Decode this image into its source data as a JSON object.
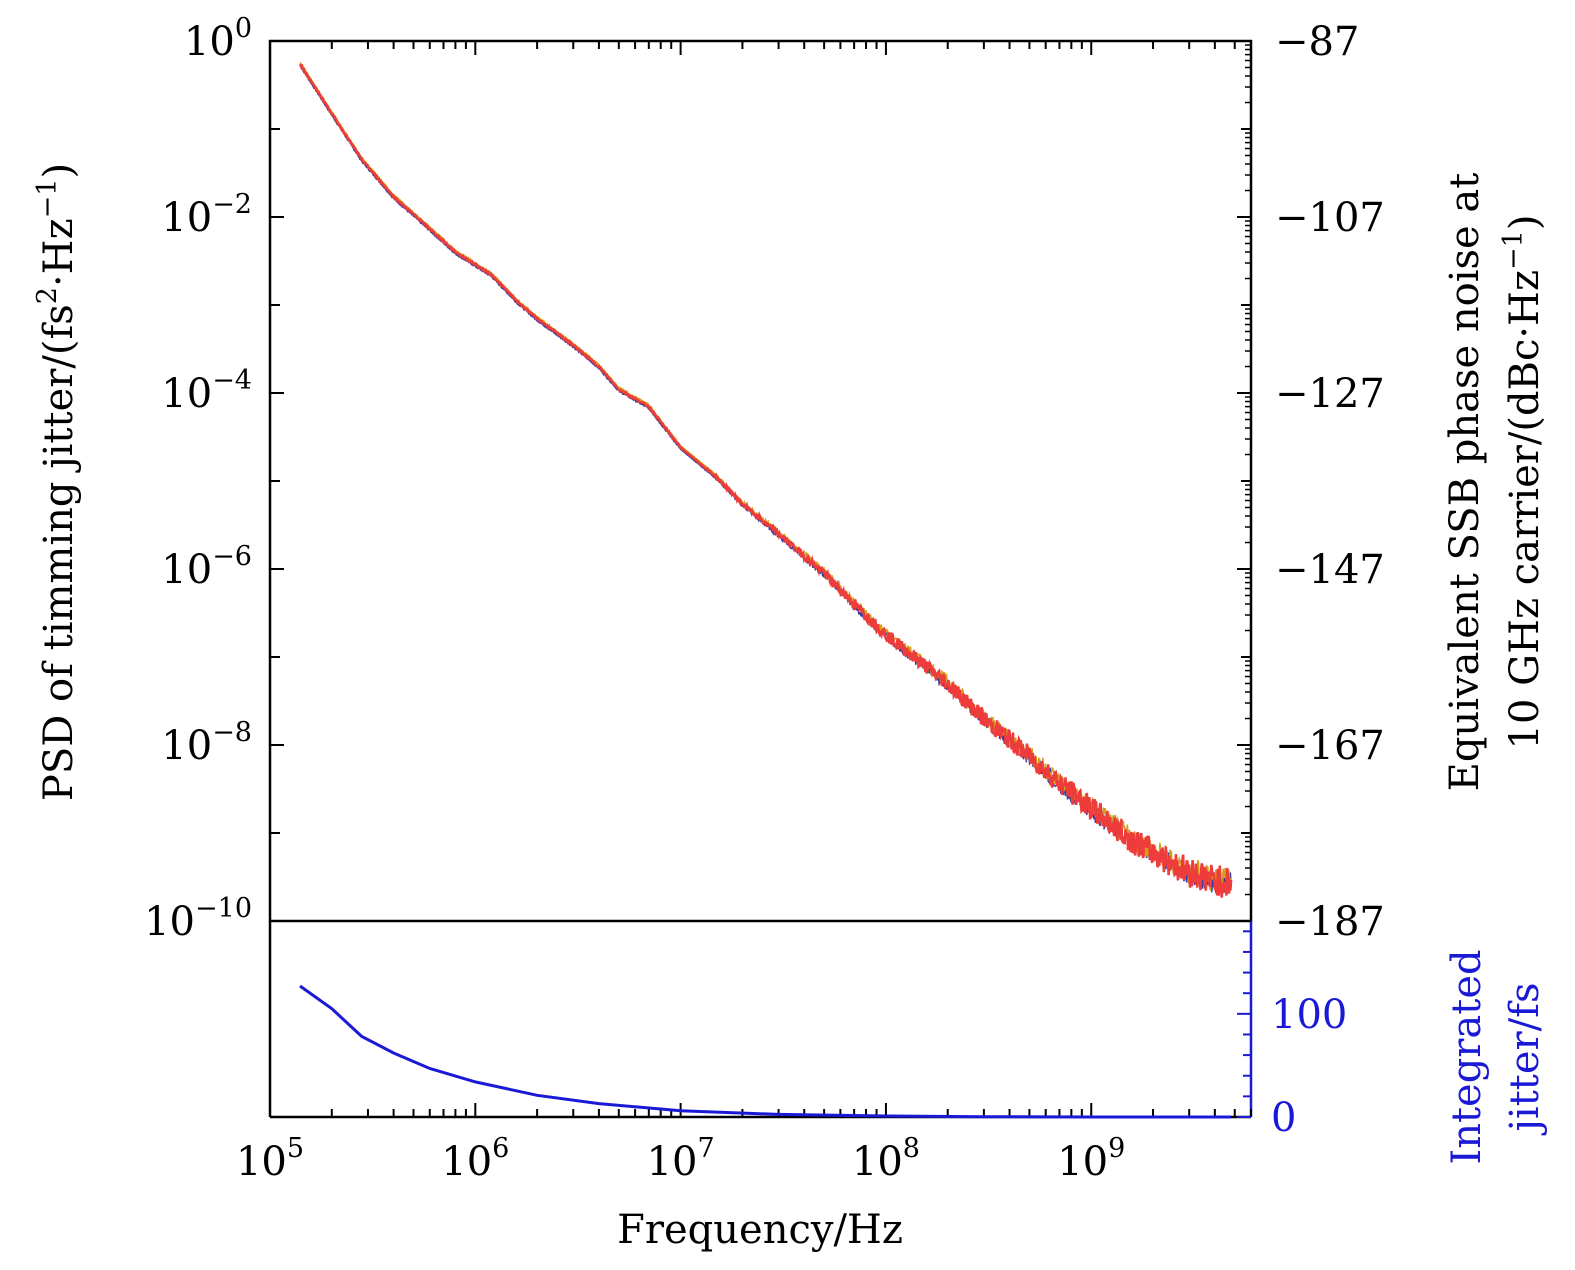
{
  "colors": {
    "psd_line": "#ee3b3b",
    "psd_under_1": "#d4a017",
    "psd_under_2": "#3a3aa0",
    "jitter_line": "#1a1ad6",
    "axis": "#000000"
  },
  "chart_data": [
    {
      "type": "line",
      "panel": "top",
      "x_scale": "log",
      "y_scale": "log",
      "xlim": [
        100000,
        6000000000
      ],
      "ylim": [
        1e-10,
        1
      ],
      "ylabel": {
        "main": "PSD of timming jitter/(fs",
        "sup1": "2",
        "mid": "·Hz",
        "sup2": "−1",
        "end": ")"
      },
      "y2label_line1": "Equivalent SSB phase noise at",
      "y2label_line2": {
        "main": "10 GHz carrier/(dBc·Hz",
        "sup": "−1",
        "end": ")"
      },
      "y_ticks": [
        {
          "base": "10",
          "exp": "0",
          "value": 1
        },
        {
          "base": "10",
          "exp": "−2",
          "value": 0.01
        },
        {
          "base": "10",
          "exp": "−4",
          "value": 0.0001
        },
        {
          "base": "10",
          "exp": "−6",
          "value": 1e-06
        },
        {
          "base": "10",
          "exp": "−8",
          "value": 1e-08
        },
        {
          "base": "10",
          "exp": "−10",
          "value": 1e-10
        }
      ],
      "y2_ticks": [
        "−87",
        "−107",
        "−127",
        "−147",
        "−167",
        "−187"
      ],
      "series": [
        {
          "color": "#ee3b3b",
          "x": [
            140000,
            200000,
            280000,
            400000,
            560000,
            800000,
            1200000,
            1600000,
            2000000,
            3000000,
            4000000,
            5000000,
            7000000,
            10000000,
            15000000,
            20000000,
            30000000,
            50000000,
            70000000,
            100000000,
            200000000,
            300000000,
            500000000,
            700000000,
            1000000000,
            1500000000,
            2000000000,
            3000000000,
            4000000000,
            4800000000
          ],
          "y": [
            0.55,
            0.15,
            0.045,
            0.017,
            0.0085,
            0.004,
            0.0022,
            0.0011,
            0.0007,
            0.00035,
            0.0002,
            0.00011,
            7e-05,
            2.4e-05,
            1.1e-05,
            5.5e-06,
            2.5e-06,
            9e-07,
            4e-07,
            1.8e-07,
            5e-08,
            2e-08,
            7.5e-09,
            3.7e-09,
            1.9e-09,
            9e-10,
            6e-10,
            3.6e-10,
            2.9e-10,
            2.7e-10
          ]
        }
      ]
    },
    {
      "type": "line",
      "panel": "bottom",
      "x_scale": "log",
      "xlim": [
        100000,
        6000000000
      ],
      "ylim": [
        0,
        190
      ],
      "xlabel": "Frequency/Hz",
      "x_ticks": [
        {
          "base": "10",
          "exp": "5",
          "value": 100000
        },
        {
          "base": "10",
          "exp": "6",
          "value": 1000000
        },
        {
          "base": "10",
          "exp": "7",
          "value": 10000000
        },
        {
          "base": "10",
          "exp": "8",
          "value": 100000000
        },
        {
          "base": "10",
          "exp": "9",
          "value": 1000000000
        }
      ],
      "y2_ticks": [
        "100",
        "0"
      ],
      "y2label_line1": "Integrated",
      "y2label_line2": "jitter/fs",
      "series": [
        {
          "color": "#1a1ad6",
          "x": [
            140000,
            200000,
            280000,
            400000,
            600000,
            1000000,
            2000000,
            4000000,
            10000000,
            30000000,
            100000000,
            300000000,
            1000000000
          ],
          "y": [
            127,
            105,
            78,
            62,
            47,
            34,
            21,
            13,
            6,
            2.5,
            1,
            0.3,
            0
          ]
        }
      ]
    }
  ]
}
